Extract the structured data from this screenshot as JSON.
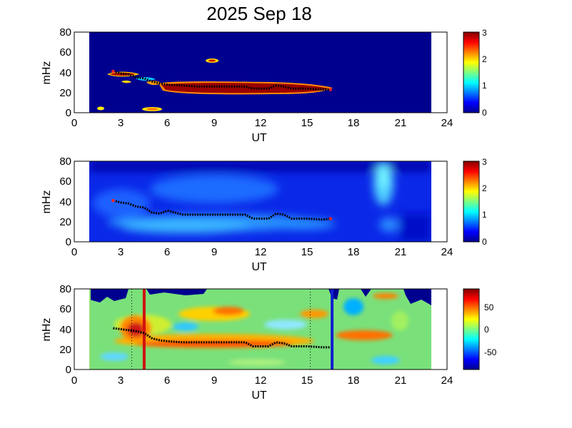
{
  "title": "2025 Sep 18",
  "chart_data": [
    {
      "type": "heatmap",
      "xlabel": "UT",
      "ylabel": "mHz",
      "xlim": [
        0,
        24
      ],
      "ylim": [
        0,
        80
      ],
      "xticks": [
        "0",
        "3",
        "6",
        "9",
        "12",
        "15",
        "18",
        "21",
        "24"
      ],
      "yticks": [
        "0",
        "20",
        "40",
        "60",
        "80"
      ],
      "data_range_ut": [
        1,
        23
      ],
      "colorbar": {
        "range": [
          0,
          3
        ],
        "ticks": [
          "0",
          "1",
          "2",
          "3"
        ]
      },
      "traced_frequency_ut": [
        2.5,
        3.0,
        3.5,
        4.0,
        4.5,
        5.0,
        5.5,
        6.0,
        7.0,
        8.0,
        9.0,
        10.0,
        11.0,
        11.5,
        12.0,
        12.5,
        13.0,
        13.5,
        14.0,
        15.0,
        16.0,
        16.5
      ],
      "traced_frequency_mhz": [
        41,
        39,
        38,
        35,
        34,
        31,
        29,
        28,
        27,
        26,
        26,
        26,
        26,
        24,
        24,
        24,
        27,
        26,
        24,
        24,
        23,
        23
      ]
    },
    {
      "type": "heatmap",
      "xlabel": "UT",
      "ylabel": "mHz",
      "xlim": [
        0,
        24
      ],
      "ylim": [
        0,
        80
      ],
      "xticks": [
        "0",
        "3",
        "6",
        "9",
        "12",
        "15",
        "18",
        "21",
        "24"
      ],
      "yticks": [
        "0",
        "20",
        "40",
        "60",
        "80"
      ],
      "data_range_ut": [
        1,
        23
      ],
      "colorbar": {
        "range": [
          0,
          3
        ],
        "ticks": [
          "0",
          "1",
          "2",
          "3"
        ]
      },
      "traced_frequency_ut": [
        2.5,
        3.0,
        3.5,
        4.0,
        4.5,
        5.0,
        5.5,
        6.0,
        7.0,
        8.0,
        9.0,
        10.0,
        11.0,
        11.5,
        12.0,
        12.5,
        13.0,
        13.5,
        14.0,
        15.0,
        16.0,
        16.5
      ],
      "traced_frequency_mhz": [
        41,
        39,
        38,
        35,
        34,
        29,
        28,
        31,
        27,
        27,
        27,
        27,
        27,
        23,
        23,
        23,
        28,
        27,
        23,
        23,
        22,
        23
      ]
    },
    {
      "type": "heatmap",
      "xlabel": "UT",
      "ylabel": "mHz",
      "xlim": [
        0,
        24
      ],
      "ylim": [
        0,
        80
      ],
      "xticks": [
        "0",
        "3",
        "6",
        "9",
        "12",
        "15",
        "18",
        "21",
        "24"
      ],
      "yticks": [
        "0",
        "20",
        "40",
        "60",
        "80"
      ],
      "data_range_ut": [
        1,
        23
      ],
      "colorbar": {
        "range": [
          -90,
          90
        ],
        "ticks": [
          "-50",
          "0",
          "50"
        ]
      },
      "vertical_lines": [
        {
          "ut": 4.5,
          "color": "#d01010"
        },
        {
          "ut": 16.6,
          "color": "#1020d0"
        }
      ],
      "dotted_lines_ut": [
        3.7,
        15.2
      ],
      "traced_frequency_ut": [
        2.5,
        3.0,
        3.5,
        4.0,
        4.5,
        5.0,
        5.5,
        6.0,
        7.0,
        8.0,
        9.0,
        10.0,
        11.0,
        11.5,
        12.0,
        12.5,
        13.0,
        13.5,
        14.0,
        15.0,
        16.0,
        16.5
      ],
      "traced_frequency_mhz": [
        41,
        40,
        39,
        38,
        36,
        31,
        29,
        28,
        27,
        27,
        27,
        27,
        27,
        23,
        23,
        23,
        27,
        26,
        23,
        23,
        22,
        22
      ]
    }
  ]
}
